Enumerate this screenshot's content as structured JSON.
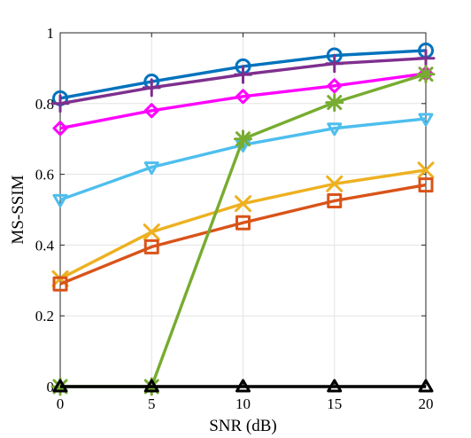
{
  "chart_data": {
    "type": "line",
    "xlabel": "SNR (dB)",
    "ylabel": "MS-SSIM",
    "xlim": [
      0,
      20
    ],
    "ylim": [
      0,
      1
    ],
    "xticks": [
      0,
      5,
      10,
      15,
      20
    ],
    "yticks": [
      0,
      0.2,
      0.4,
      0.6,
      0.8,
      1
    ],
    "xtick_labels": [
      "0",
      "5",
      "10",
      "15",
      "20"
    ],
    "ytick_labels": [
      "0",
      "0.2",
      "0.4",
      "0.6",
      "0.8",
      "1"
    ],
    "grid": true,
    "x": [
      0,
      5,
      10,
      15,
      20
    ],
    "series": [
      {
        "color": "#0072BD",
        "marker": "circle",
        "values": [
          0.815,
          0.862,
          0.905,
          0.936,
          0.95
        ]
      },
      {
        "color": "#7E2F8E",
        "marker": "plus",
        "values": [
          0.8,
          0.845,
          0.882,
          0.913,
          0.928
        ]
      },
      {
        "color": "#FF00FF",
        "marker": "diamond",
        "values": [
          0.73,
          0.78,
          0.82,
          0.85,
          0.885
        ]
      },
      {
        "color": "#4DBEEE",
        "marker": "triangle-down",
        "values": [
          0.528,
          0.62,
          0.683,
          0.73,
          0.757
        ]
      },
      {
        "color": "#EDB120",
        "marker": "x",
        "values": [
          0.305,
          0.437,
          0.517,
          0.573,
          0.612
        ]
      },
      {
        "color": "#D95319",
        "marker": "square",
        "values": [
          0.29,
          0.395,
          0.463,
          0.525,
          0.57
        ]
      },
      {
        "color": "#77AC30",
        "marker": "asterisk",
        "values": [
          0.0,
          0.0,
          0.7,
          0.803,
          0.883
        ]
      },
      {
        "color": "#000000",
        "marker": "triangle-up",
        "values": [
          0.0,
          0.0,
          0.0,
          0.0,
          0.0
        ]
      }
    ]
  }
}
